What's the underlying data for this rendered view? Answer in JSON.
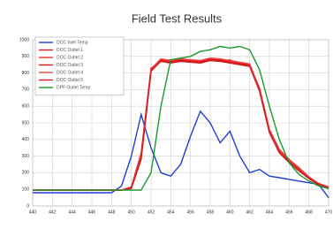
{
  "chart_data": {
    "type": "line",
    "title": "Field Test Results",
    "x": [
      440,
      441,
      442,
      443,
      444,
      445,
      446,
      447,
      448,
      449,
      450,
      451,
      452,
      453,
      454,
      455,
      456,
      457,
      458,
      459,
      460,
      461,
      462,
      463,
      464,
      465,
      466,
      467,
      468,
      469,
      470
    ],
    "series": [
      {
        "name": "DOC Inlet Temp",
        "color": "#1f3fd0",
        "values": [
          80,
          80,
          80,
          80,
          80,
          80,
          80,
          80,
          80,
          120,
          300,
          550,
          350,
          200,
          180,
          250,
          420,
          570,
          500,
          380,
          450,
          300,
          200,
          220,
          180,
          170,
          160,
          150,
          140,
          130,
          50
        ]
      },
      {
        "name": "DOC Outlet 1",
        "color": "#e02020",
        "values": [
          95,
          95,
          95,
          95,
          95,
          95,
          95,
          95,
          95,
          95,
          110,
          300,
          820,
          880,
          870,
          880,
          875,
          870,
          885,
          880,
          870,
          860,
          850,
          700,
          450,
          330,
          270,
          220,
          170,
          130,
          110
        ]
      },
      {
        "name": "DOC Outlet 2",
        "color": "#e83030",
        "values": [
          95,
          95,
          95,
          95,
          95,
          95,
          95,
          95,
          95,
          95,
          115,
          320,
          830,
          870,
          880,
          870,
          880,
          860,
          875,
          870,
          880,
          850,
          840,
          690,
          440,
          320,
          260,
          210,
          165,
          125,
          105
        ]
      },
      {
        "name": "DOC Outlet 3",
        "color": "#d81818",
        "values": [
          95,
          95,
          95,
          95,
          95,
          95,
          95,
          95,
          95,
          95,
          105,
          280,
          810,
          875,
          865,
          875,
          870,
          865,
          880,
          875,
          865,
          855,
          845,
          710,
          460,
          340,
          280,
          230,
          175,
          135,
          115
        ]
      },
      {
        "name": "DOC Outlet 4",
        "color": "#f04040",
        "values": [
          95,
          95,
          95,
          95,
          95,
          95,
          95,
          95,
          95,
          95,
          112,
          310,
          825,
          885,
          875,
          885,
          880,
          875,
          890,
          885,
          875,
          865,
          855,
          705,
          455,
          335,
          275,
          225,
          172,
          132,
          112
        ]
      },
      {
        "name": "DOC Outlet 5",
        "color": "#cc2020",
        "values": [
          95,
          95,
          95,
          95,
          95,
          95,
          95,
          95,
          95,
          95,
          108,
          290,
          815,
          870,
          860,
          870,
          865,
          860,
          875,
          870,
          860,
          850,
          840,
          695,
          445,
          325,
          265,
          215,
          168,
          128,
          108
        ]
      },
      {
        "name": "DPF Outlet Temp",
        "color": "#1a9a2a",
        "values": [
          95,
          95,
          95,
          95,
          95,
          95,
          95,
          95,
          95,
          95,
          95,
          95,
          200,
          600,
          880,
          890,
          900,
          930,
          940,
          960,
          950,
          960,
          940,
          820,
          600,
          400,
          260,
          190,
          150,
          120,
          105
        ]
      }
    ],
    "xlim": [
      440,
      470
    ],
    "xticks": [
      440,
      442,
      444,
      446,
      448,
      450,
      452,
      454,
      456,
      458,
      460,
      462,
      464,
      466,
      468,
      470
    ],
    "ylim": [
      0,
      1000
    ],
    "yticks": [
      0,
      100,
      200,
      300,
      400,
      500,
      600,
      700,
      800,
      900,
      1000
    ],
    "grid": true,
    "legend": "top-left"
  }
}
